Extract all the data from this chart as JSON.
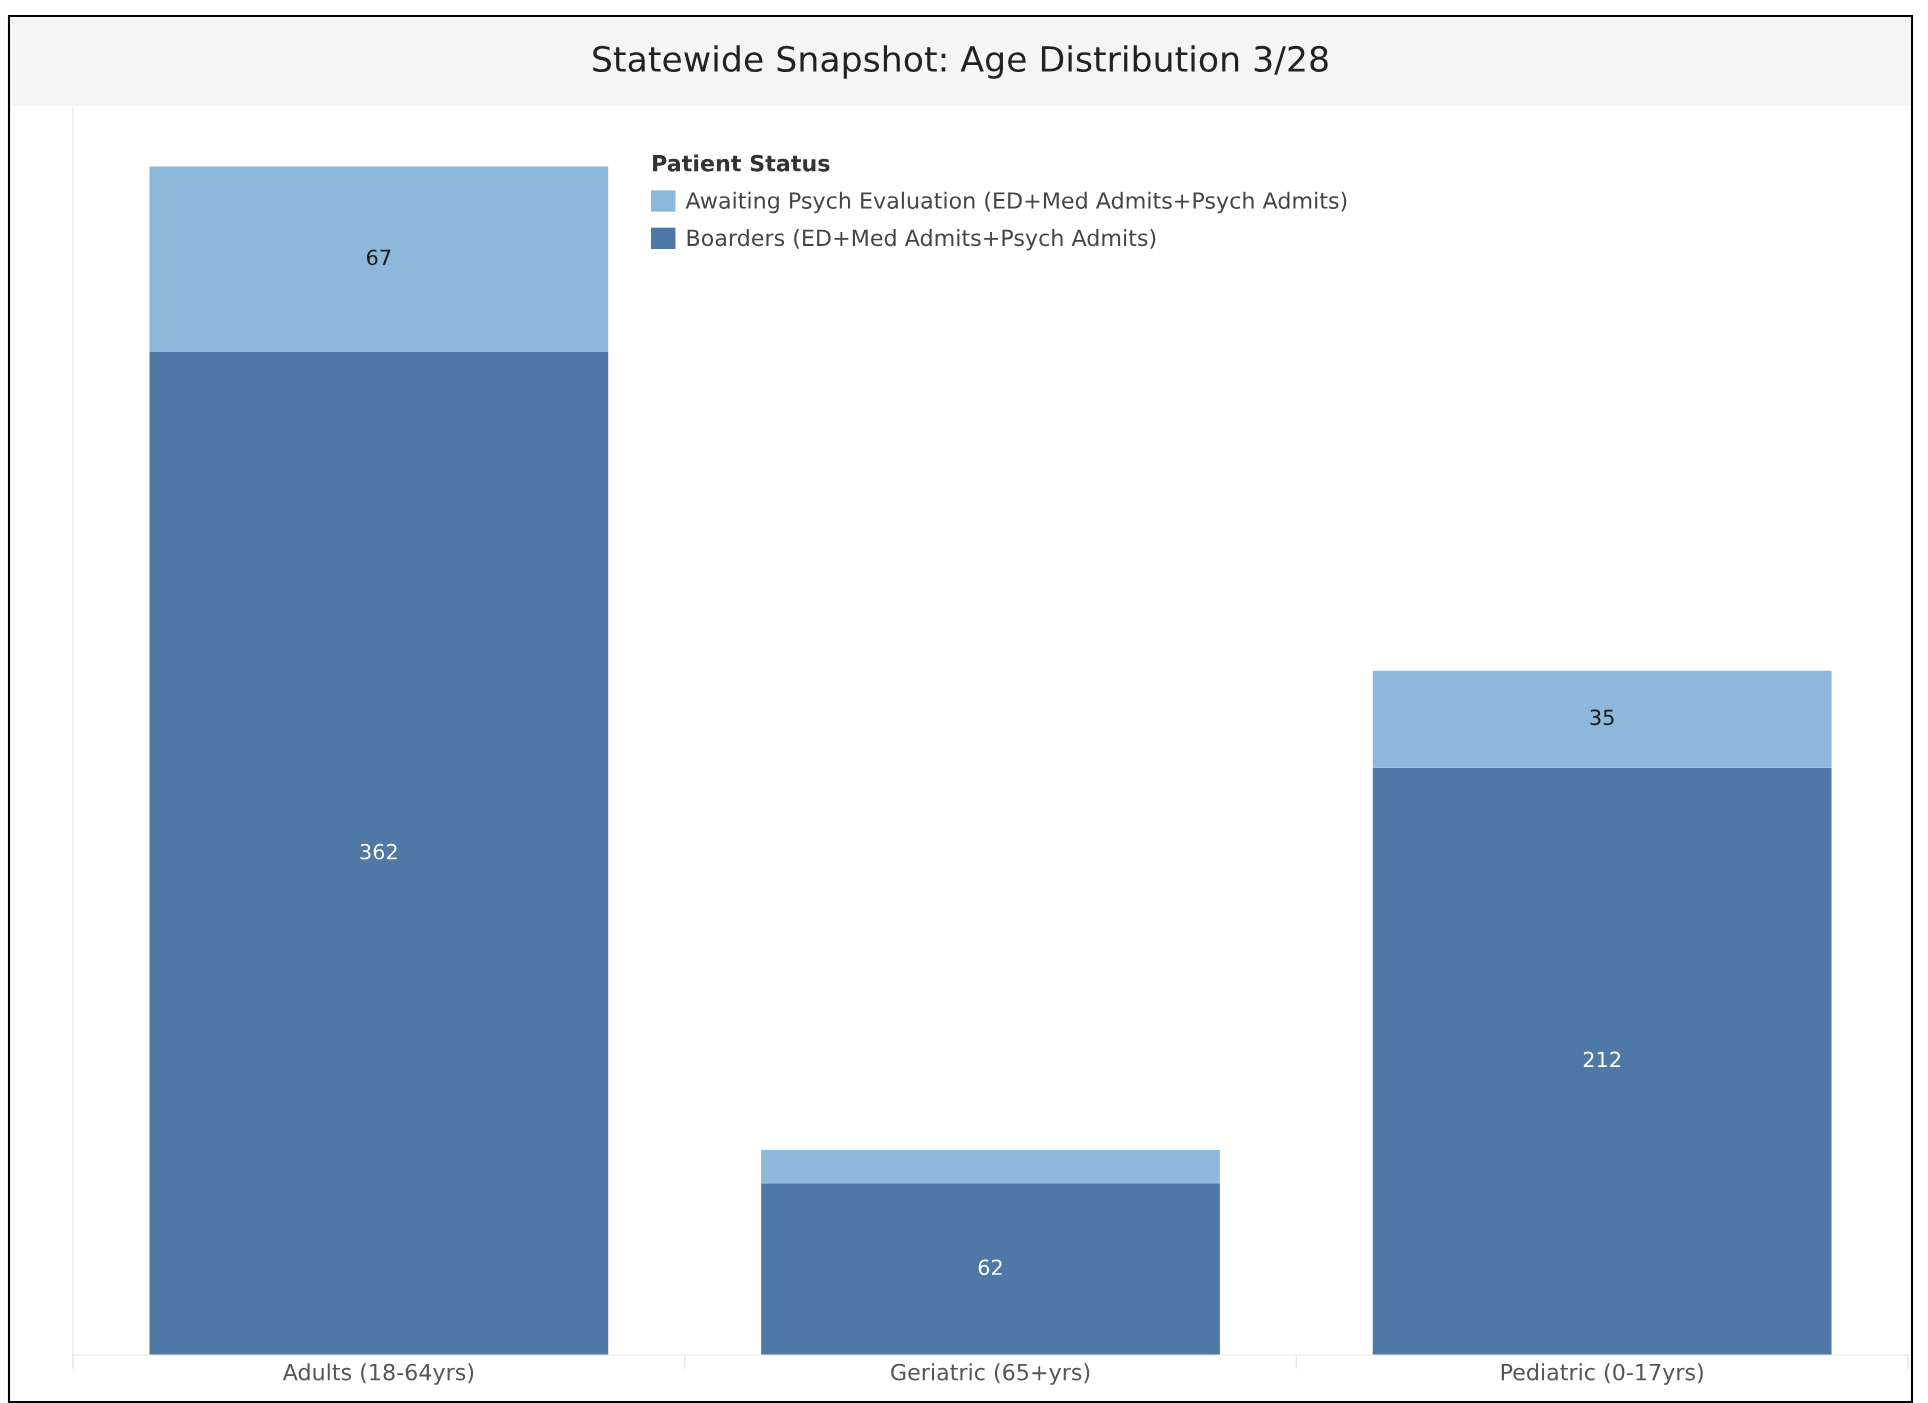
{
  "chart_data": {
    "type": "bar",
    "title": "Statewide Snapshot: Age Distribution 3/28",
    "legend_title": "Patient Status",
    "categories": [
      "Adults (18-64yrs)",
      "Geriatric (65+yrs)",
      "Pediatric (0-17yrs)"
    ],
    "stacked": true,
    "series": [
      {
        "name": "Boarders (ED+Med Admits+Psych Admits)",
        "color": "#4e79a7",
        "values": [
          362,
          62,
          212
        ],
        "value_labels": [
          "362",
          "62",
          "212"
        ]
      },
      {
        "name": "Awaiting Psych Evaluation (ED+Med Admits+Psych Admits)",
        "color": "#8cb8da",
        "values": [
          67,
          12,
          35
        ],
        "value_labels": [
          "67",
          null,
          "35"
        ]
      }
    ],
    "legend": "top",
    "tick_labels": "x",
    "grid": false
  }
}
